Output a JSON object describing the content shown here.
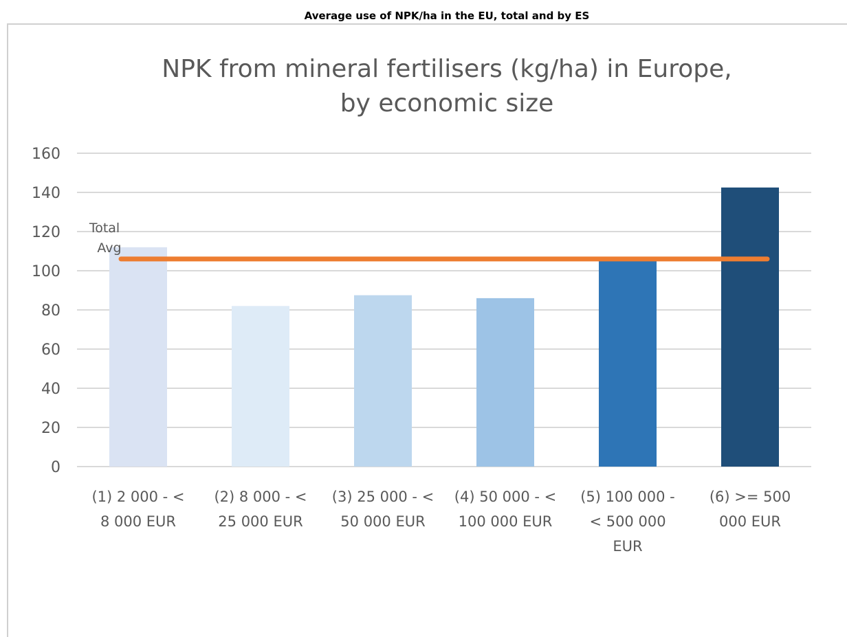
{
  "caption": "Average use of NPK/ha in the EU, total and by ES",
  "chart_data": {
    "type": "bar",
    "title": "NPK from mineral fertilisers (kg/ha) in Europe,",
    "subtitle": "by economic size",
    "categories": [
      [
        "(1) 2 000 - <",
        "8 000 EUR"
      ],
      [
        "(2) 8 000 - <",
        "25 000 EUR"
      ],
      [
        "(3) 25 000 - <",
        "50 000 EUR"
      ],
      [
        "(4) 50 000 - <",
        "100 000 EUR"
      ],
      [
        "(5) 100 000 -",
        "< 500 000",
        "EUR"
      ],
      [
        "(6) >= 500",
        "000 EUR"
      ]
    ],
    "values": [
      112,
      82,
      87.5,
      86,
      105,
      142.5
    ],
    "bar_colors": [
      "#dae3f3",
      "#deebf7",
      "#bdd7ee",
      "#9dc3e6",
      "#2e75b6",
      "#1f4e79"
    ],
    "reference_line": {
      "label": [
        "Total",
        "Avg"
      ],
      "value": 106,
      "color": "#ed7d31"
    },
    "ylim": [
      0,
      160
    ],
    "yticks": [
      0,
      20,
      40,
      60,
      80,
      100,
      120,
      140,
      160
    ],
    "grid": true,
    "gridline_color": "#d9d9d9",
    "text_color": "#595959"
  }
}
